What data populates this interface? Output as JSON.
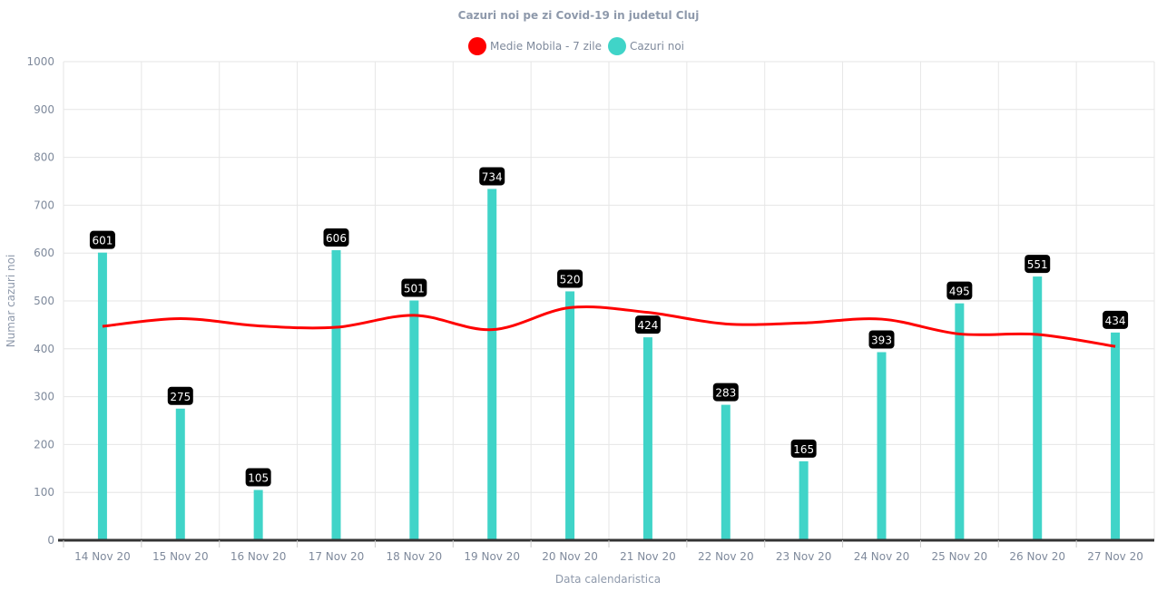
{
  "chart_data": {
    "type": "bar",
    "title": "Cazuri noi pe zi Covid-19 in judetul Cluj",
    "xlabel": "Data calendaristica",
    "ylabel": "Numar cazuri noi",
    "ylim": [
      0,
      1000
    ],
    "yticks": [
      0,
      100,
      200,
      300,
      400,
      500,
      600,
      700,
      800,
      900,
      1000
    ],
    "grid": true,
    "legend_position": "top-center",
    "categories": [
      "14 Nov 20",
      "15 Nov 20",
      "16 Nov 20",
      "17 Nov 20",
      "18 Nov 20",
      "19 Nov 20",
      "20 Nov 20",
      "21 Nov 20",
      "22 Nov 20",
      "23 Nov 20",
      "24 Nov 20",
      "25 Nov 20",
      "26 Nov 20",
      "27 Nov 20"
    ],
    "series": [
      {
        "name": "Medie Mobila - 7 zile",
        "type": "line",
        "color": "#ff0000",
        "values": [
          447,
          463,
          448,
          445,
          470,
          440,
          486,
          476,
          452,
          454,
          462,
          431,
          430,
          405
        ]
      },
      {
        "name": "Cazuri noi",
        "type": "bar",
        "color": "#40d4c8",
        "values": [
          601,
          275,
          105,
          606,
          501,
          734,
          520,
          424,
          283,
          165,
          393,
          495,
          551,
          434
        ],
        "data_labels": [
          "601",
          "275",
          "105",
          "606",
          "501",
          "734",
          "520",
          "424",
          "283",
          "165",
          "393",
          "495",
          "551",
          "434"
        ]
      }
    ]
  }
}
